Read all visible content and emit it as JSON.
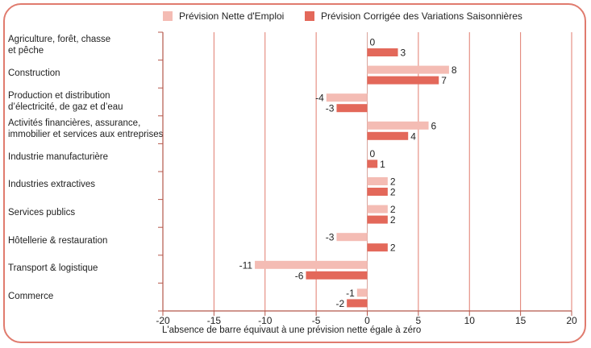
{
  "chart_data": {
    "type": "bar",
    "orientation": "horizontal",
    "title": "",
    "xlabel": "",
    "ylabel": "",
    "xlim": [
      -20,
      20
    ],
    "xticks": [
      -20,
      -15,
      -10,
      -5,
      0,
      5,
      10,
      15,
      20
    ],
    "grid": true,
    "legend_position": "top",
    "categories": [
      "Agriculture, forêt, chasse\net pêche",
      "Construction",
      "Production et distribution\nd’électricité, de gaz et d’eau",
      "Activités financières, assurance,\nimmobilier et services aux entreprises",
      "Industrie manufacturière",
      "Industries extractives",
      "Services publics",
      "Hôtellerie & restauration",
      "Transport & logistique",
      "Commerce"
    ],
    "series": [
      {
        "name": "Prévision Nette d'Emploi",
        "color": "#f4bcb4",
        "values": [
          0,
          8,
          -4,
          6,
          0,
          2,
          2,
          -3,
          -11,
          -1
        ]
      },
      {
        "name": "Prévision Corrigée des Variations Saisonnières",
        "color": "#e3685a",
        "values": [
          3,
          7,
          -3,
          4,
          1,
          2,
          2,
          2,
          -6,
          -2
        ]
      }
    ],
    "annotation": "L'absence de barre équivaut à une prévision nette égale à zéro"
  },
  "colors": {
    "frame": "#e07b6e",
    "grid": "#e07b6e",
    "axis": "#b5574b"
  }
}
